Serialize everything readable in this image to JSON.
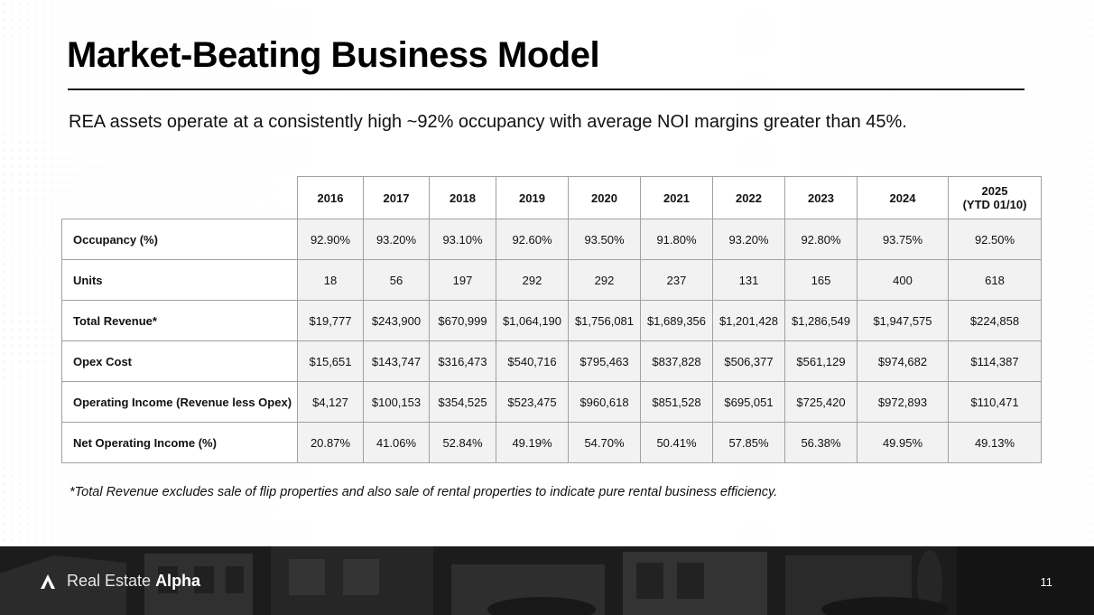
{
  "slide": {
    "title": "Market-Beating Business Model",
    "subtitle": "REA assets operate at a consistently high ~92% occupancy with average NOI margins greater than 45%.",
    "footnote": "*Total Revenue excludes sale of flip properties and also sale of rental properties to indicate pure rental business efficiency.",
    "page_number": "11"
  },
  "brand": {
    "name_light": "Real Estate",
    "name_bold": "Alpha",
    "logo_icon": "chevron-a-icon"
  },
  "table": {
    "columns": [
      {
        "year": "2016",
        "note": ""
      },
      {
        "year": "2017",
        "note": ""
      },
      {
        "year": "2018",
        "note": ""
      },
      {
        "year": "2019",
        "note": ""
      },
      {
        "year": "2020",
        "note": ""
      },
      {
        "year": "2021",
        "note": ""
      },
      {
        "year": "2022",
        "note": ""
      },
      {
        "year": "2023",
        "note": ""
      },
      {
        "year": "2024",
        "note": ""
      },
      {
        "year": "2025",
        "note": "(YTD 01/10)"
      }
    ],
    "rows": [
      {
        "label": "Occupancy (%)",
        "values": [
          "92.90%",
          "93.20%",
          "93.10%",
          "92.60%",
          "93.50%",
          "91.80%",
          "93.20%",
          "92.80%",
          "93.75%",
          "92.50%"
        ]
      },
      {
        "label": "Units",
        "values": [
          "18",
          "56",
          "197",
          "292",
          "292",
          "237",
          "131",
          "165",
          "400",
          "618"
        ]
      },
      {
        "label": "Total Revenue*",
        "values": [
          "$19,777",
          "$243,900",
          "$670,999",
          "$1,064,190",
          "$1,756,081",
          "$1,689,356",
          "$1,201,428",
          "$1,286,549",
          "$1,947,575",
          "$224,858"
        ]
      },
      {
        "label": "Opex Cost",
        "values": [
          "$15,651",
          "$143,747",
          "$316,473",
          "$540,716",
          "$795,463",
          "$837,828",
          "$506,377",
          "$561,129",
          "$974,682",
          "$114,387"
        ]
      },
      {
        "label": "Operating Income (Revenue less Opex)",
        "values": [
          "$4,127",
          "$100,153",
          "$354,525",
          "$523,475",
          "$960,618",
          "$851,528",
          "$695,051",
          "$725,420",
          "$972,893",
          "$110,471"
        ]
      },
      {
        "label": "Net Operating Income (%)",
        "values": [
          "20.87%",
          "41.06%",
          "52.84%",
          "49.19%",
          "54.70%",
          "50.41%",
          "57.85%",
          "56.38%",
          "49.95%",
          "49.13%"
        ]
      }
    ]
  }
}
